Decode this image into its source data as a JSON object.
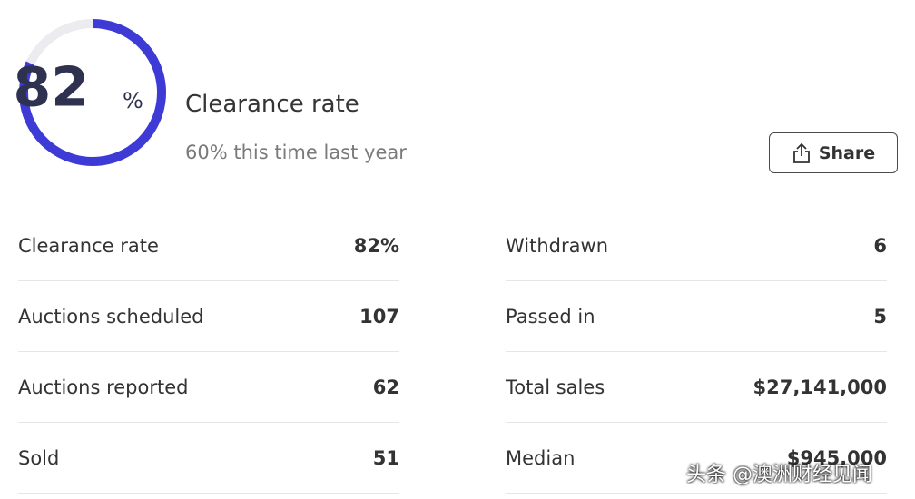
{
  "gauge": {
    "value": 82,
    "unit": "%",
    "title": "Clearance rate",
    "subtitle": "60% this time last year"
  },
  "button": {
    "label": "Share"
  },
  "stats": {
    "left": [
      {
        "label": "Clearance rate",
        "value": "82%"
      },
      {
        "label": "Auctions scheduled",
        "value": "107"
      },
      {
        "label": "Auctions reported",
        "value": "62"
      },
      {
        "label": "Sold",
        "value": "51"
      }
    ],
    "right": [
      {
        "label": "Withdrawn",
        "value": "6"
      },
      {
        "label": "Passed in",
        "value": "5"
      },
      {
        "label": "Total sales",
        "value": "$27,141,000"
      },
      {
        "label": "Median",
        "value": "$945,000"
      }
    ]
  },
  "watermark": "头条 @澳洲财经见闻"
}
